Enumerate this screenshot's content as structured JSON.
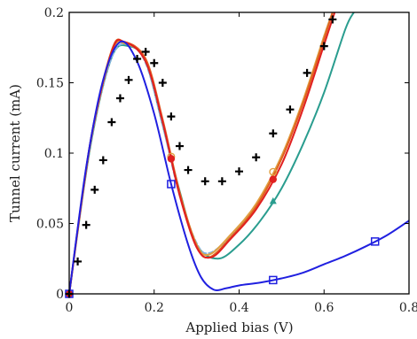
{
  "chart_data": {
    "type": "line",
    "title": "",
    "xlabel": "Applied bias (V)",
    "ylabel": "Tunnel current (mA)",
    "xlim": [
      0,
      0.8
    ],
    "ylim": [
      0,
      0.2
    ],
    "xticks": [
      0,
      0.2,
      0.4,
      0.6,
      0.8
    ],
    "xtick_labels": [
      "0",
      "0.2",
      "0.4",
      "0.6",
      "0.8"
    ],
    "yticks": [
      0,
      0.05,
      0.1,
      0.15,
      0.2
    ],
    "ytick_labels": [
      "0",
      "0.05",
      "0.1",
      "0.15",
      "0.2"
    ],
    "grid": false,
    "legend": "none",
    "series": [
      {
        "color": "#2a9d8f",
        "dash": false,
        "marker": "triangle",
        "marker_x": [
          0.48
        ],
        "x": [
          0,
          0.05,
          0.1,
          0.14,
          0.18,
          0.22,
          0.26,
          0.3,
          0.35,
          0.4,
          0.45,
          0.5,
          0.55,
          0.6,
          0.65,
          0.67
        ],
        "y": [
          0,
          0.105,
          0.168,
          0.176,
          0.165,
          0.12,
          0.073,
          0.035,
          0.025,
          0.035,
          0.052,
          0.075,
          0.106,
          0.143,
          0.188,
          0.2
        ]
      },
      {
        "color": "#7fb3e0",
        "dash": true,
        "marker": "none",
        "x": [
          0,
          0.05,
          0.1,
          0.14,
          0.18,
          0.22,
          0.26,
          0.3,
          0.33,
          0.38,
          0.44,
          0.5,
          0.55,
          0.6,
          0.62
        ],
        "y": [
          0,
          0.106,
          0.168,
          0.177,
          0.164,
          0.12,
          0.07,
          0.036,
          0.029,
          0.041,
          0.063,
          0.098,
          0.136,
          0.183,
          0.2
        ]
      },
      {
        "color": "#e0a040",
        "dash": false,
        "marker": "circle-open",
        "marker_x": [
          0.24,
          0.48
        ],
        "x": [
          0,
          0.05,
          0.1,
          0.13,
          0.18,
          0.22,
          0.26,
          0.3,
          0.33,
          0.38,
          0.44,
          0.5,
          0.55,
          0.6,
          0.62
        ],
        "y": [
          0,
          0.107,
          0.171,
          0.178,
          0.166,
          0.123,
          0.072,
          0.035,
          0.028,
          0.042,
          0.064,
          0.098,
          0.137,
          0.183,
          0.2
        ]
      },
      {
        "color": "#e06020",
        "dash": false,
        "marker": "none",
        "x": [
          0,
          0.05,
          0.1,
          0.13,
          0.18,
          0.22,
          0.26,
          0.3,
          0.33,
          0.38,
          0.44,
          0.5,
          0.55,
          0.6,
          0.62
        ],
        "y": [
          0,
          0.108,
          0.173,
          0.179,
          0.167,
          0.124,
          0.072,
          0.034,
          0.026,
          0.04,
          0.062,
          0.096,
          0.135,
          0.181,
          0.2
        ]
      },
      {
        "color": "#e02020",
        "dash": false,
        "marker": "circle-filled",
        "marker_x": [
          0,
          0.24,
          0.48
        ],
        "x": [
          0,
          0.05,
          0.1,
          0.13,
          0.18,
          0.22,
          0.26,
          0.3,
          0.335,
          0.38,
          0.44,
          0.5,
          0.55,
          0.6,
          0.625
        ],
        "y": [
          0,
          0.108,
          0.172,
          0.179,
          0.165,
          0.122,
          0.07,
          0.033,
          0.026,
          0.039,
          0.06,
          0.092,
          0.131,
          0.177,
          0.2
        ]
      },
      {
        "color": "#2020e0",
        "dash": false,
        "marker": "square-open",
        "marker_x": [
          0,
          0.24,
          0.48,
          0.72
        ],
        "x": [
          0,
          0.04,
          0.08,
          0.12,
          0.16,
          0.2,
          0.24,
          0.28,
          0.31,
          0.34,
          0.37,
          0.4,
          0.45,
          0.5,
          0.55,
          0.6,
          0.65,
          0.7,
          0.75,
          0.8
        ],
        "y": [
          0,
          0.09,
          0.152,
          0.179,
          0.165,
          0.128,
          0.078,
          0.035,
          0.012,
          0.003,
          0.004,
          0.006,
          0.008,
          0.011,
          0.015,
          0.021,
          0.027,
          0.034,
          0.042,
          0.052
        ]
      },
      {
        "color": "#000000",
        "dash": false,
        "marker": "plus",
        "line": false,
        "x": [
          0,
          0.02,
          0.04,
          0.06,
          0.08,
          0.1,
          0.12,
          0.14,
          0.16,
          0.18,
          0.2,
          0.22,
          0.24,
          0.26,
          0.28,
          0.32,
          0.36,
          0.4,
          0.44,
          0.48,
          0.52,
          0.56,
          0.6,
          0.62
        ],
        "y": [
          0,
          0.023,
          0.049,
          0.074,
          0.095,
          0.122,
          0.139,
          0.152,
          0.167,
          0.172,
          0.164,
          0.15,
          0.126,
          0.105,
          0.088,
          0.08,
          0.08,
          0.087,
          0.097,
          0.114,
          0.131,
          0.157,
          0.176,
          0.195
        ]
      }
    ]
  }
}
